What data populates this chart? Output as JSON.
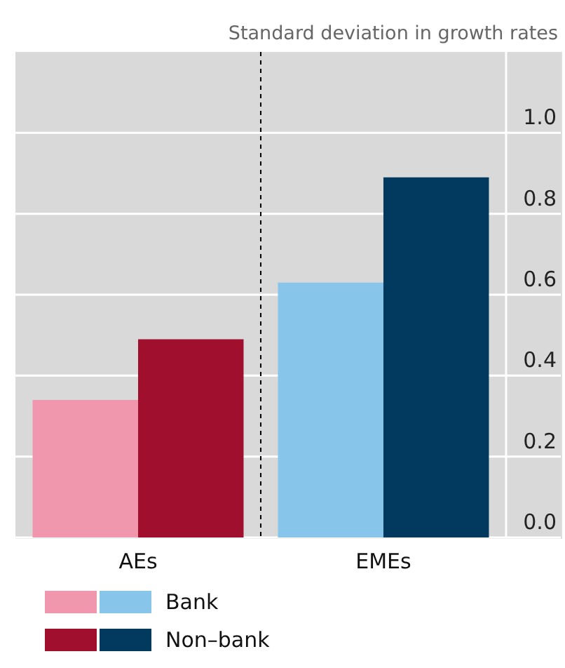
{
  "chart_data": {
    "type": "bar",
    "ylabel": "Standard deviation in growth rates",
    "categories": [
      "AEs",
      "EMEs"
    ],
    "series": [
      {
        "name": "Bank",
        "colors": [
          "#f097ad",
          "#88c5eb"
        ],
        "values": [
          0.34,
          0.63
        ]
      },
      {
        "name": "Non–bank",
        "colors": [
          "#a0102e",
          "#02395e"
        ],
        "values": [
          0.49,
          0.89
        ]
      }
    ],
    "ylim": [
      0,
      1.2
    ],
    "yticks": [
      {
        "value": 0,
        "label": "0.0"
      },
      0.2,
      0.4,
      0.6,
      0.8,
      {
        "value": 1,
        "label": "1.0"
      }
    ],
    "grid": "y",
    "legend": "bottom",
    "ref_lines": [
      {
        "axis": "x",
        "value": "EMEs",
        "line_style": "dashed",
        "color": "#000000"
      }
    ]
  }
}
